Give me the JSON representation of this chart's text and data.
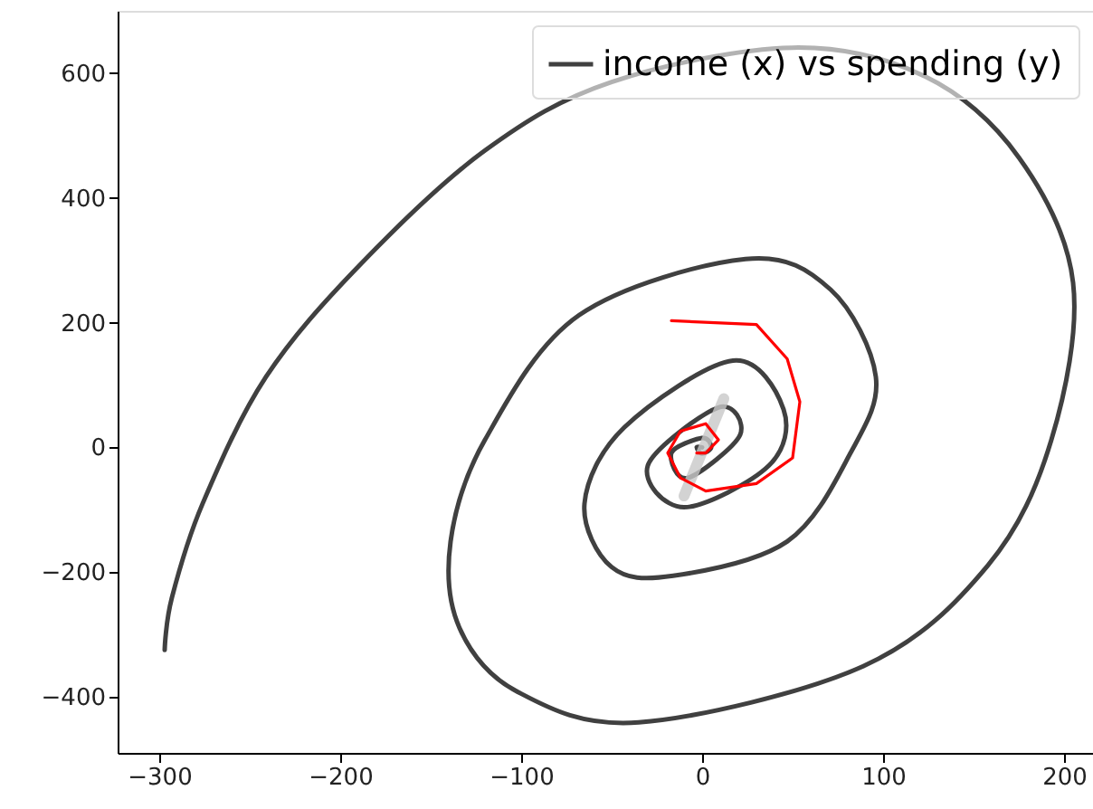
{
  "chart_data": {
    "type": "line",
    "legend": "top right",
    "grid": false,
    "marker": "none",
    "line_style": "solid",
    "xlim": [
      -323,
      216
    ],
    "ylim": [
      -490,
      700
    ],
    "xticks": [
      -300,
      -200,
      -100,
      0,
      100,
      200
    ],
    "yticks": [
      -400,
      -200,
      0,
      200,
      400,
      600
    ],
    "series": [
      {
        "name": "income (x) vs spending (y)",
        "color": "#404040",
        "x": [
          -297,
          -293,
          -276,
          -241,
          -189,
          -120,
          -50,
          50,
          123,
          175,
          205,
          193,
          158,
          89,
          -35,
          -102,
          -134,
          -139,
          -120,
          -68,
          24,
          71,
          96,
          82,
          47,
          -16,
          -50,
          -65,
          -43,
          17,
          45,
          37,
          -10,
          -30,
          9,
          21,
          -8,
          -17,
          0,
          5,
          0,
          -3,
          0
        ],
        "values": [
          -325,
          -241,
          -90,
          113,
          293,
          476,
          586,
          641,
          595,
          465,
          264,
          12,
          -189,
          -351,
          -441,
          -392,
          -290,
          -151,
          12,
          212,
          302,
          253,
          113,
          -9,
          -151,
          -206,
          -192,
          -90,
          32,
          139,
          61,
          -29,
          -96,
          -29,
          64,
          20,
          -49,
          -9,
          15,
          0,
          -10,
          0,
          0
        ]
      },
      {
        "color": "#c8c8c8",
        "x": [
          -10,
          12
        ],
        "values": [
          -78,
          78
        ]
      },
      {
        "color": "#ff0000",
        "x": [
          -17,
          30,
          47,
          54,
          50,
          30,
          2,
          -12,
          -19,
          -12,
          2,
          9,
          2,
          -3
        ],
        "values": [
          203,
          197,
          142,
          73,
          -17,
          -58,
          -70,
          -49,
          -9,
          26,
          38,
          12,
          -9,
          -9
        ]
      }
    ]
  }
}
